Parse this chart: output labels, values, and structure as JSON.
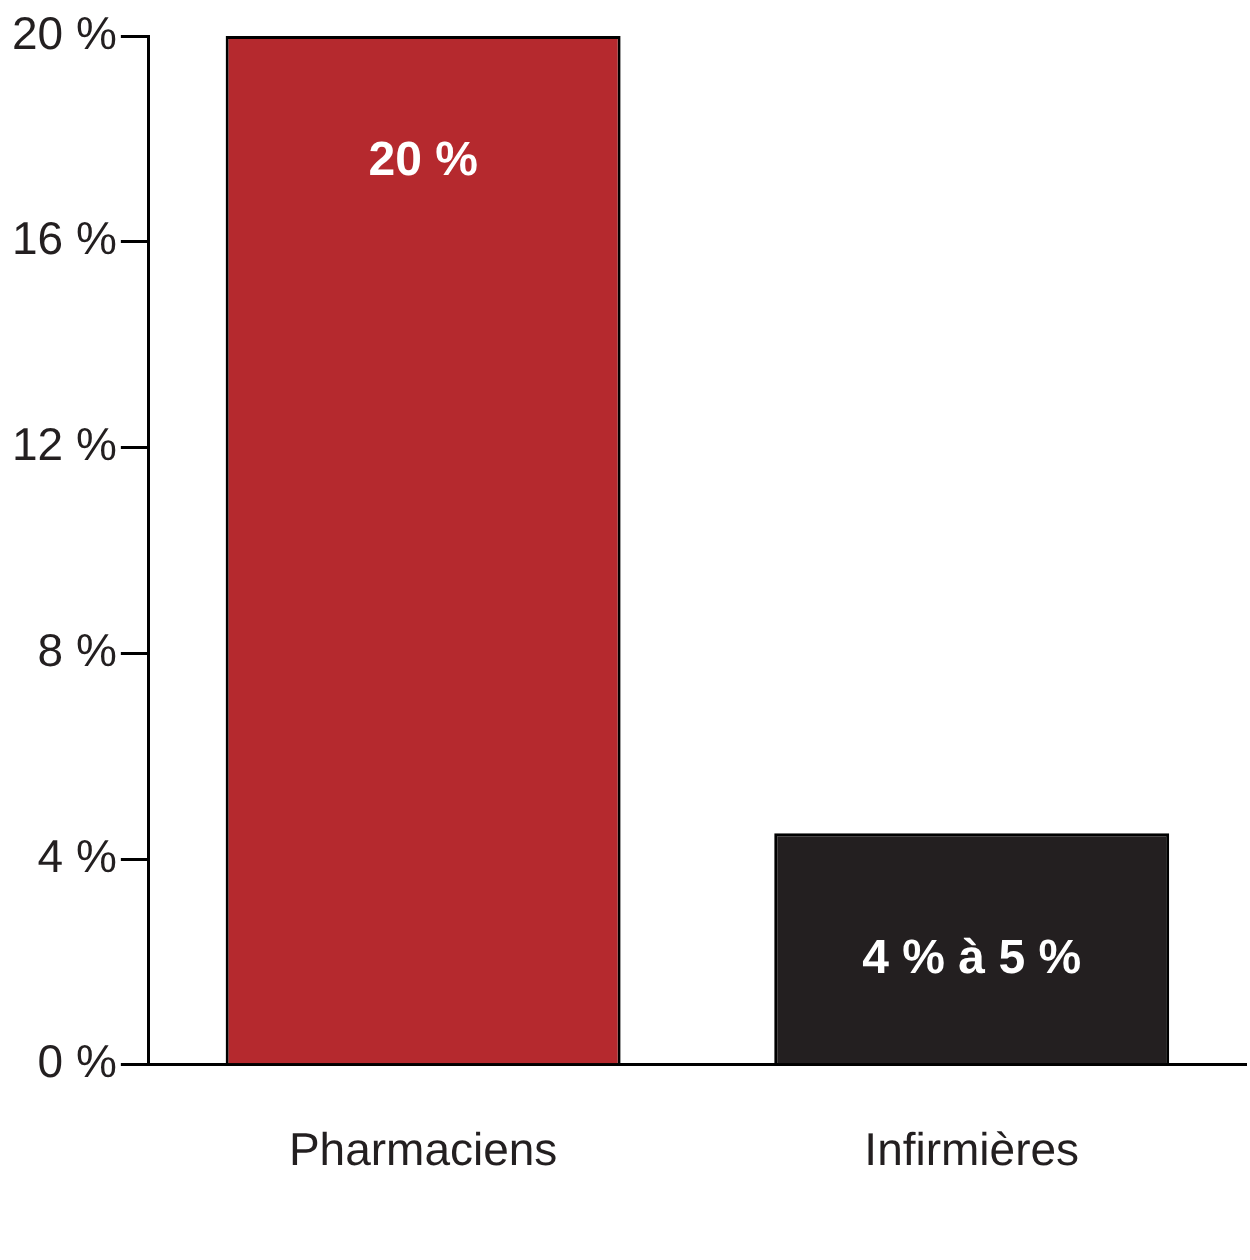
{
  "chart_data": {
    "type": "bar",
    "categories": [
      "Pharmaciens",
      "Infirmières"
    ],
    "values": [
      20,
      4.5
    ],
    "colors": [
      "#b5292e",
      "#231f20"
    ],
    "value_labels": [
      "20 %",
      "4 % à 5 %"
    ],
    "ylim": [
      0,
      20
    ],
    "yticks": [
      {
        "value": 0,
        "label": "0 %"
      },
      {
        "value": 4,
        "label": "4 %"
      },
      {
        "value": 8,
        "label": "8 %"
      },
      {
        "value": 12,
        "label": "12 %"
      },
      {
        "value": 16,
        "label": "16 %"
      },
      {
        "value": 20,
        "label": "20 %"
      }
    ],
    "grid": false,
    "legend": false
  }
}
